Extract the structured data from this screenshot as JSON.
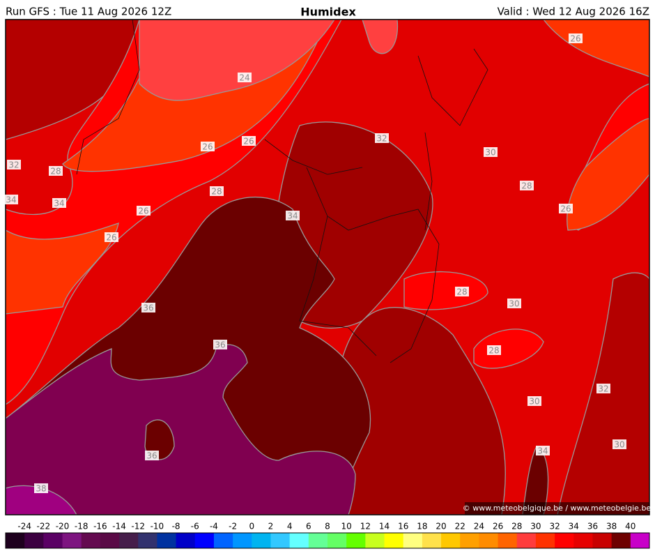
{
  "header": {
    "run": "Run GFS : Tue 11 Aug 2026 12Z",
    "title": "Humidex",
    "valid": "Valid : Wed 12 Aug 2026 16Z"
  },
  "contours": {
    "labels": [
      26,
      24,
      32,
      26,
      26,
      30,
      32,
      28,
      28,
      34,
      34,
      28,
      26,
      26,
      34,
      26,
      28,
      30,
      36,
      36,
      28,
      32,
      30,
      34,
      30,
      36,
      38
    ]
  },
  "legend": {
    "labels": [
      -24,
      -22,
      -20,
      -18,
      -16,
      -14,
      -12,
      -10,
      -8,
      -6,
      -4,
      -2,
      0,
      2,
      4,
      6,
      8,
      10,
      12,
      14,
      16,
      18,
      20,
      22,
      24,
      26,
      28,
      30,
      32,
      34,
      36,
      38,
      40
    ],
    "colors": [
      "#1e001e",
      "#3c0041",
      "#5a0064",
      "#7d1480",
      "#640a50",
      "#5a0a46",
      "#461e4b",
      "#32326e",
      "#0032a0",
      "#0000c8",
      "#0000ff",
      "#0064ff",
      "#0096ff",
      "#00b4f0",
      "#32c8ff",
      "#64ffff",
      "#64ff96",
      "#64ff64",
      "#64ff00",
      "#c8ff1e",
      "#ffff00",
      "#ffff80",
      "#ffe14b",
      "#ffc800",
      "#ffa000",
      "#ff8c00",
      "#ff6400",
      "#ff3c3c",
      "#ff3200",
      "#ff0000",
      "#e60000",
      "#c80000",
      "#6e0000",
      "#c800c8"
    ]
  },
  "credit": "© www.meteobelgique.be / www.meteobelgie.be"
}
